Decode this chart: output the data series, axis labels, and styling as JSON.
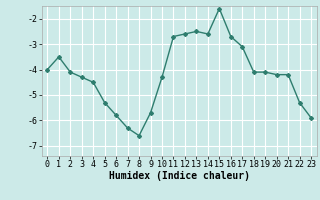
{
  "x": [
    0,
    1,
    2,
    3,
    4,
    5,
    6,
    7,
    8,
    9,
    10,
    11,
    12,
    13,
    14,
    15,
    16,
    17,
    18,
    19,
    20,
    21,
    22,
    23
  ],
  "y": [
    -4.0,
    -3.5,
    -4.1,
    -4.3,
    -4.5,
    -5.3,
    -5.8,
    -6.3,
    -6.6,
    -5.7,
    -4.3,
    -2.7,
    -2.6,
    -2.5,
    -2.6,
    -1.6,
    -2.7,
    -3.1,
    -4.1,
    -4.1,
    -4.2,
    -4.2,
    -5.3,
    -5.9
  ],
  "line_color": "#2e7d6e",
  "marker": "D",
  "marker_size": 2,
  "xlabel": "Humidex (Indice chaleur)",
  "xlim": [
    -0.5,
    23.5
  ],
  "ylim": [
    -7.4,
    -1.5
  ],
  "yticks": [
    -7,
    -6,
    -5,
    -4,
    -3,
    -2
  ],
  "xticks": [
    0,
    1,
    2,
    3,
    4,
    5,
    6,
    7,
    8,
    9,
    10,
    11,
    12,
    13,
    14,
    15,
    16,
    17,
    18,
    19,
    20,
    21,
    22,
    23
  ],
  "bg_color": "#cceae8",
  "grid_color": "#ffffff",
  "tick_fontsize": 6,
  "xlabel_fontsize": 7,
  "line_width": 1.0
}
